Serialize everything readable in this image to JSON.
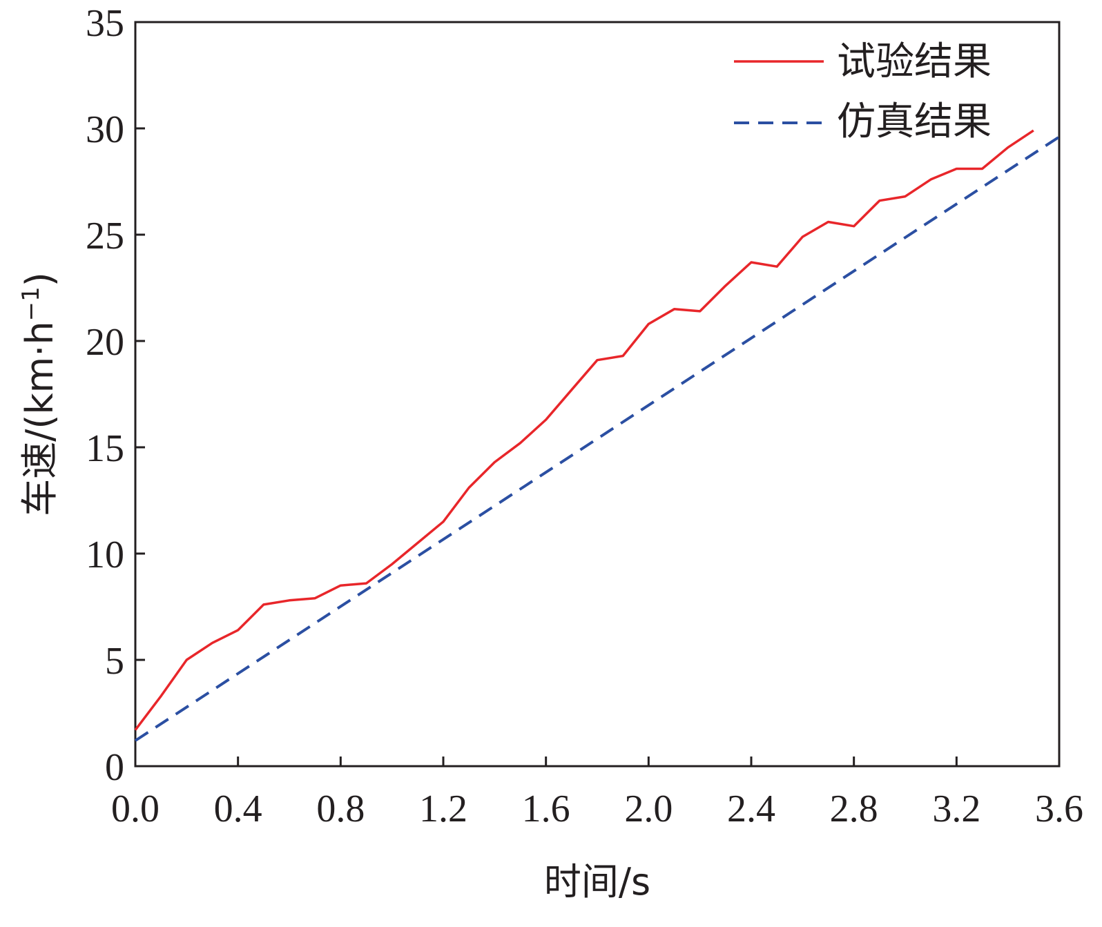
{
  "chart_data": {
    "type": "line",
    "xlabel": "时间/s",
    "ylabel": "车速/(km·h⁻¹)",
    "ylabel_parts": {
      "main": "车速/(km·h",
      "sup": "−1",
      "close": ")"
    },
    "xlim": [
      0.0,
      3.6
    ],
    "ylim": [
      0,
      35
    ],
    "x_ticks": [
      0.0,
      0.4,
      0.8,
      1.2,
      1.6,
      2.0,
      2.4,
      2.8,
      3.2,
      3.6
    ],
    "x_tick_labels": [
      "0.0",
      "0.4",
      "0.8",
      "1.2",
      "1.6",
      "2.0",
      "2.4",
      "2.8",
      "3.2",
      "3.6"
    ],
    "y_ticks": [
      0,
      5,
      10,
      15,
      20,
      25,
      30,
      35
    ],
    "y_tick_labels": [
      "0",
      "5",
      "10",
      "15",
      "20",
      "25",
      "30",
      "35"
    ],
    "grid": false,
    "legend_position": "top-right",
    "series": [
      {
        "name": "试验结果",
        "color": "#e8262a",
        "dash": "solid",
        "x": [
          0.0,
          0.1,
          0.2,
          0.3,
          0.4,
          0.5,
          0.6,
          0.7,
          0.8,
          0.9,
          1.0,
          1.1,
          1.2,
          1.3,
          1.4,
          1.5,
          1.6,
          1.7,
          1.8,
          1.9,
          2.0,
          2.1,
          2.2,
          2.3,
          2.4,
          2.5,
          2.6,
          2.7,
          2.8,
          2.9,
          3.0,
          3.1,
          3.2,
          3.3,
          3.4,
          3.5
        ],
        "y": [
          1.7,
          3.3,
          5.0,
          5.8,
          6.4,
          7.6,
          7.8,
          7.9,
          8.5,
          8.6,
          9.5,
          10.5,
          11.5,
          13.1,
          14.3,
          15.2,
          16.3,
          17.7,
          19.1,
          19.3,
          20.8,
          21.5,
          21.4,
          22.6,
          23.7,
          23.5,
          24.9,
          25.6,
          25.4,
          26.6,
          26.8,
          27.6,
          28.1,
          28.1,
          29.1,
          29.9
        ]
      },
      {
        "name": "仿真结果",
        "color": "#2b4fa2",
        "dash": "dashed",
        "x": [
          0.0,
          3.6
        ],
        "y": [
          1.2,
          29.6
        ]
      }
    ]
  }
}
